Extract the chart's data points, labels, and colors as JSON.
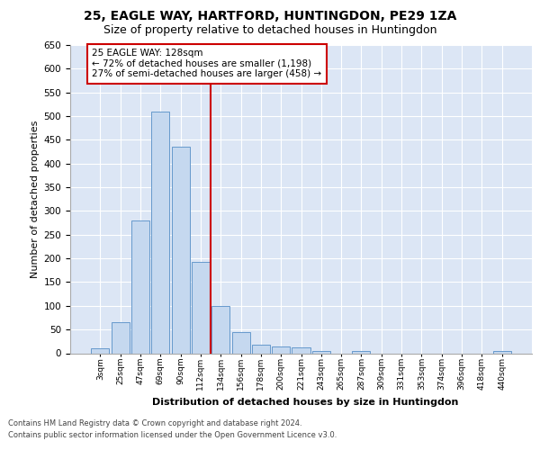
{
  "title1": "25, EAGLE WAY, HARTFORD, HUNTINGDON, PE29 1ZA",
  "title2": "Size of property relative to detached houses in Huntingdon",
  "xlabel": "Distribution of detached houses by size in Huntingdon",
  "ylabel": "Number of detached properties",
  "footer1": "Contains HM Land Registry data © Crown copyright and database right 2024.",
  "footer2": "Contains public sector information licensed under the Open Government Licence v3.0.",
  "categories": [
    "3sqm",
    "25sqm",
    "47sqm",
    "69sqm",
    "90sqm",
    "112sqm",
    "134sqm",
    "156sqm",
    "178sqm",
    "200sqm",
    "221sqm",
    "243sqm",
    "265sqm",
    "287sqm",
    "309sqm",
    "331sqm",
    "353sqm",
    "374sqm",
    "396sqm",
    "418sqm",
    "440sqm"
  ],
  "values": [
    10,
    65,
    280,
    510,
    435,
    192,
    100,
    45,
    18,
    15,
    12,
    5,
    0,
    5,
    0,
    0,
    0,
    0,
    0,
    0,
    5
  ],
  "bar_color": "#c5d8ef",
  "bar_edge_color": "#6699cc",
  "reference_line_x": 5.5,
  "reference_line_color": "#cc0000",
  "annotation_text": "25 EAGLE WAY: 128sqm\n← 72% of detached houses are smaller (1,198)\n27% of semi-detached houses are larger (458) →",
  "ylim_max": 650,
  "yticks": [
    0,
    50,
    100,
    150,
    200,
    250,
    300,
    350,
    400,
    450,
    500,
    550,
    600,
    650
  ],
  "background_color": "#dce6f5",
  "grid_color": "#ffffff",
  "title1_fontsize": 10,
  "title2_fontsize": 9,
  "annotation_fontsize": 7.5,
  "footer_fontsize": 6.0,
  "ylabel_fontsize": 8
}
